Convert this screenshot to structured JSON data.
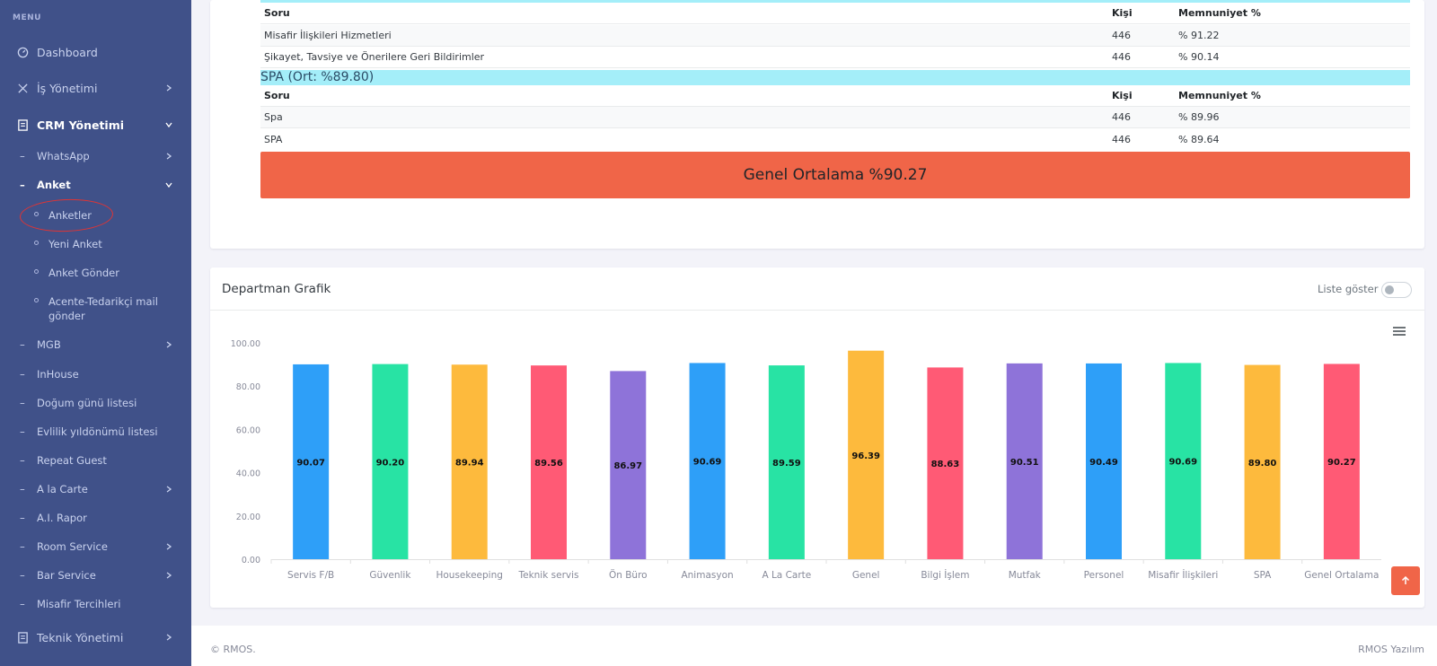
{
  "sidebar": {
    "menu_title": "MENU",
    "items": [
      {
        "label": "Dashboard",
        "icon": "dashboard-icon"
      },
      {
        "label": "İş Yönetimi",
        "icon": "tools-icon"
      },
      {
        "label": "CRM Yönetimi",
        "icon": "document-icon"
      }
    ],
    "crm_sub": [
      {
        "label": "WhatsApp"
      },
      {
        "label": "Anket"
      },
      {
        "label": "MGB"
      },
      {
        "label": "InHouse"
      },
      {
        "label": "Doğum günü listesi"
      },
      {
        "label": "Evlilik yıldönümü listesi"
      },
      {
        "label": "Repeat Guest"
      },
      {
        "label": "A la Carte"
      },
      {
        "label": "A.I. Rapor"
      },
      {
        "label": "Room Service"
      },
      {
        "label": "Bar Service"
      },
      {
        "label": "Misafir Tercihleri"
      }
    ],
    "anket_sub": [
      {
        "label": "Anketler"
      },
      {
        "label": "Yeni Anket"
      },
      {
        "label": "Anket Gönder"
      },
      {
        "label": "Acente-Tedarikçi mail gönder"
      }
    ],
    "teknik": {
      "label": "Teknik Yönetimi",
      "icon": "document-icon"
    }
  },
  "table1": {
    "headers": {
      "soru": "Soru",
      "kisi": "Kişi",
      "memnuniyet": "Memnuniyet %"
    },
    "rows": [
      {
        "soru": "Misafir İlişkileri Hizmetleri",
        "kisi": "446",
        "memnuniyet": "% 91.22"
      },
      {
        "soru": "Şikayet, Tavsiye ve Önerilere Geri Bildirimler",
        "kisi": "446",
        "memnuniyet": "% 90.14"
      }
    ]
  },
  "spa_section": {
    "title": "SPA (Ort: %89.80)",
    "headers": {
      "soru": "Soru",
      "kisi": "Kişi",
      "memnuniyet": "Memnuniyet %"
    },
    "rows": [
      {
        "soru": "Spa",
        "kisi": "446",
        "memnuniyet": "% 89.96"
      },
      {
        "soru": "SPA",
        "kisi": "446",
        "memnuniyet": "% 89.64"
      }
    ]
  },
  "genel_ortalama": "Genel Ortalama %90.27",
  "chart_card": {
    "title": "Departman Grafik",
    "toggle_label": "Liste göster",
    "toggle_on": false
  },
  "chart_data": {
    "type": "bar",
    "categories": [
      "Servis F/B",
      "Güvenlik",
      "Housekeeping",
      "Teknik servis",
      "Ön Büro",
      "Animasyon",
      "A La Carte",
      "Genel",
      "Bilgi İşlem",
      "Mutfak",
      "Personel",
      "Misafir İlişkileri",
      "SPA",
      "Genel Ortalama"
    ],
    "values": [
      90.07,
      90.2,
      89.94,
      89.56,
      86.97,
      90.69,
      89.59,
      96.39,
      88.63,
      90.51,
      90.49,
      90.69,
      89.8,
      90.27
    ],
    "data_labels": [
      "90.07",
      "90.20",
      "89.94",
      "89.56",
      "86.97",
      "90.69",
      "89.59",
      "96.39",
      "88.63",
      "90.51",
      "90.49",
      "90.69",
      "89.80",
      "90.27"
    ],
    "colors": [
      "#2e9ff8",
      "#28e3a4",
      "#fdba3d",
      "#ff5a75",
      "#8e73d9",
      "#2e9ff8",
      "#28e3a4",
      "#fdba3d",
      "#ff5a75",
      "#8e73d9",
      "#2e9ff8",
      "#28e3a4",
      "#fdba3d",
      "#ff5a75"
    ],
    "y_ticks": [
      "0.00",
      "20.00",
      "40.00",
      "60.00",
      "80.00",
      "100.00"
    ],
    "ylim": [
      0,
      100
    ],
    "grid": false,
    "legend": "none",
    "title": "",
    "xlabel": "",
    "ylabel": ""
  },
  "footer": {
    "left": "© RMOS.",
    "right": "RMOS Yazılım"
  },
  "accent": "#405189",
  "danger": "#f06548"
}
